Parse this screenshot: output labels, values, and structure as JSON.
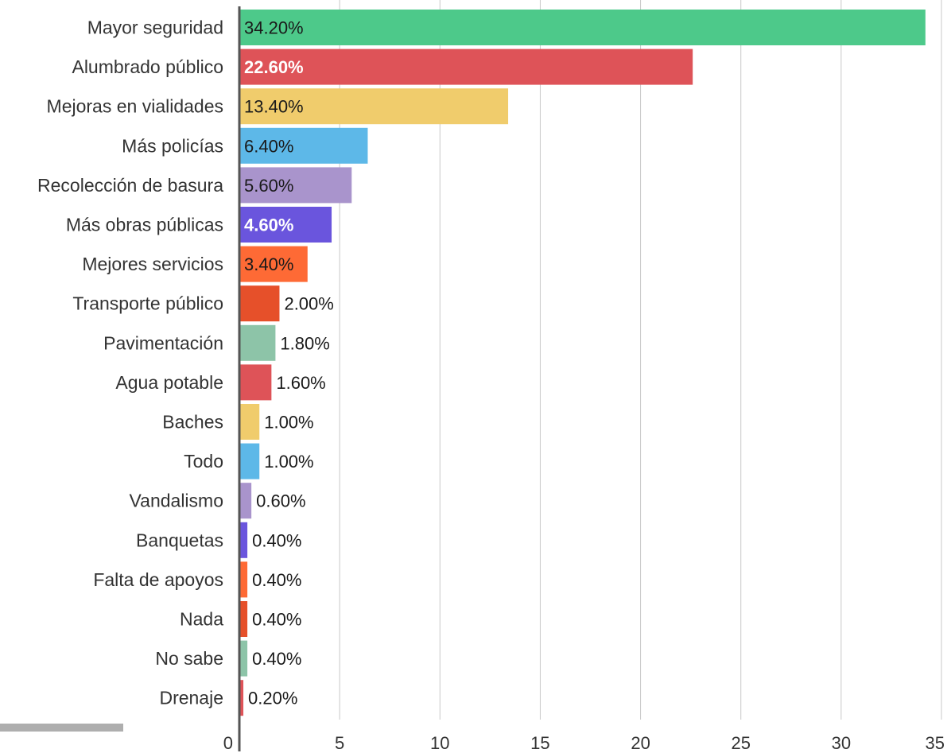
{
  "chart_data": {
    "type": "bar",
    "orientation": "horizontal",
    "categories": [
      "Mayor seguridad",
      "Alumbrado público",
      "Mejoras en vialidades",
      "Más policías",
      "Recolección de basura",
      "Más obras públicas",
      "Mejores servicios",
      "Transporte público",
      "Pavimentación",
      "Agua potable",
      "Baches",
      "Todo",
      "Vandalismo",
      "Banquetas",
      "Falta de apoyos",
      "Nada",
      "No sabe",
      "Drenaje"
    ],
    "values": [
      34.2,
      22.6,
      13.4,
      6.4,
      5.6,
      4.6,
      3.4,
      2.0,
      1.8,
      1.6,
      1.0,
      1.0,
      0.6,
      0.4,
      0.4,
      0.4,
      0.4,
      0.2
    ],
    "value_labels": [
      "34.20%",
      "22.60%",
      "13.40%",
      "6.40%",
      "5.60%",
      "4.60%",
      "3.40%",
      "2.00%",
      "1.80%",
      "1.60%",
      "1.00%",
      "1.00%",
      "0.60%",
      "0.40%",
      "0.40%",
      "0.40%",
      "0.40%",
      "0.20%"
    ],
    "colors": [
      "#4dc98a",
      "#de5358",
      "#f0cc6c",
      "#5db8e8",
      "#a994cc",
      "#6a55dd",
      "#fe6a35",
      "#e6502a",
      "#8dc4a8",
      "#de5358",
      "#f0cc6c",
      "#5db8e8",
      "#a994cc",
      "#6a55dd",
      "#fe6a35",
      "#e6502a",
      "#8dc4a8",
      "#de5358"
    ],
    "label_colors": [
      "#1a1a1a",
      "#ffffff",
      "#1a1a1a",
      "#1a1a1a",
      "#1a1a1a",
      "#ffffff",
      "#1a1a1a",
      "#1a1a1a",
      "#1a1a1a",
      "#1a1a1a",
      "#1a1a1a",
      "#1a1a1a",
      "#1a1a1a",
      "#1a1a1a",
      "#1a1a1a",
      "#1a1a1a",
      "#1a1a1a",
      "#1a1a1a"
    ],
    "xticks": [
      0,
      5,
      10,
      15,
      20,
      25,
      30,
      35
    ],
    "xtick_labels": [
      "0",
      "5",
      "10",
      "15",
      "20",
      "25",
      "30",
      "35"
    ],
    "xlim": [
      0,
      35
    ],
    "grid": true,
    "legend": "none",
    "title": "",
    "xlabel": "",
    "ylabel": ""
  }
}
